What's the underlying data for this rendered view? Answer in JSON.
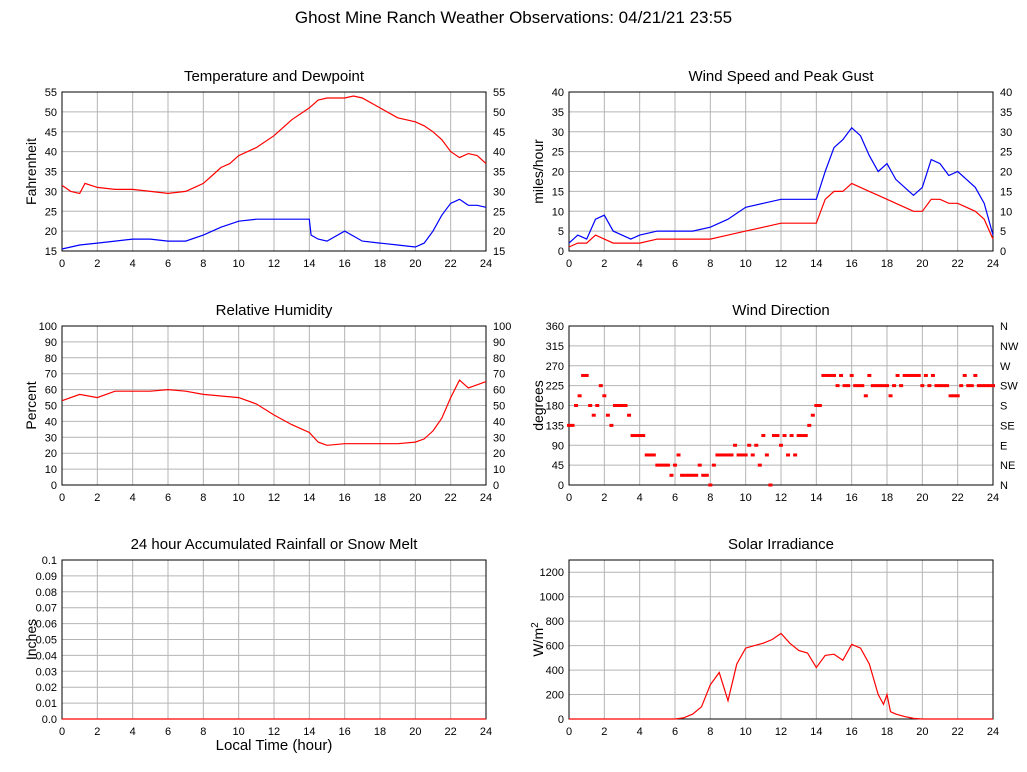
{
  "page_title": "Ghost Mine Ranch Weather Observations: 04/21/21 23:55",
  "x_axis_title": "Local Time (hour)",
  "chart_data": [
    {
      "id": "temp",
      "type": "line",
      "title": "Temperature and Dewpoint",
      "ylabel": "Fahrenheit",
      "xlim": [
        0,
        24
      ],
      "ylim": [
        15,
        55
      ],
      "x_ticks": [
        0,
        2,
        4,
        6,
        8,
        10,
        12,
        14,
        16,
        18,
        20,
        22,
        24
      ],
      "y_ticks": [
        15,
        20,
        25,
        30,
        35,
        40,
        45,
        50,
        55
      ],
      "right_ticks": [
        "15",
        "20",
        "25",
        "30",
        "35",
        "40",
        "45",
        "50",
        "55"
      ],
      "grid": true,
      "series": [
        {
          "color": "#ff0000",
          "x": [
            0,
            0.5,
            1,
            1.3,
            2,
            3,
            4,
            5,
            6,
            7,
            7.5,
            8,
            8.5,
            9,
            9.5,
            10,
            11,
            12,
            13,
            14,
            14.5,
            15,
            16,
            16.5,
            17,
            18,
            19,
            20,
            20.5,
            21,
            21.5,
            22,
            22.5,
            23,
            23.5,
            24
          ],
          "y": [
            31.5,
            30,
            29.5,
            32,
            31,
            30.5,
            30.5,
            30,
            29.5,
            30,
            31,
            32,
            34,
            36,
            37,
            39,
            41,
            44,
            48,
            51,
            53,
            53.5,
            53.5,
            54,
            53.5,
            51,
            48.5,
            47.5,
            46.5,
            45,
            43,
            40,
            38.5,
            39.5,
            39,
            37
          ]
        },
        {
          "color": "#0000ff",
          "x": [
            0,
            0.5,
            1,
            2,
            3,
            4,
            5,
            6,
            7,
            8,
            9,
            10,
            11,
            12,
            13,
            14,
            14.1,
            14.5,
            15,
            16,
            17,
            18,
            19,
            20,
            20.5,
            21,
            21.5,
            22,
            22.5,
            23,
            23.5,
            24
          ],
          "y": [
            15.5,
            16,
            16.5,
            17,
            17.5,
            18,
            18,
            17.5,
            17.5,
            19,
            21,
            22.5,
            23,
            23,
            23,
            23,
            19,
            18,
            17.5,
            20,
            17.5,
            17,
            16.5,
            16,
            17,
            20,
            24,
            27,
            28,
            26.5,
            26.5,
            26
          ]
        }
      ]
    },
    {
      "id": "wind",
      "type": "line",
      "title": "Wind Speed and Peak Gust",
      "ylabel": "miles/hour",
      "xlim": [
        0,
        24
      ],
      "ylim": [
        0,
        40
      ],
      "x_ticks": [
        0,
        2,
        4,
        6,
        8,
        10,
        12,
        14,
        16,
        18,
        20,
        22,
        24
      ],
      "y_ticks": [
        0,
        5,
        10,
        15,
        20,
        25,
        30,
        35,
        40
      ],
      "right_ticks": [
        "0",
        "5",
        "10",
        "15",
        "20",
        "25",
        "30",
        "35",
        "40"
      ],
      "grid": true,
      "series": [
        {
          "color": "#0000ff",
          "x": [
            0,
            0.5,
            1,
            1.5,
            2,
            2.5,
            3,
            3.5,
            4,
            5,
            6,
            7,
            8,
            9,
            10,
            11,
            12,
            13,
            14,
            14.5,
            15,
            15.5,
            16,
            16.5,
            17,
            17.5,
            18,
            18.5,
            19,
            19.5,
            20,
            20.5,
            21,
            21.5,
            22,
            22.5,
            23,
            23.5,
            24
          ],
          "y": [
            2,
            4,
            3,
            8,
            9,
            5,
            4,
            3,
            4,
            5,
            5,
            5,
            6,
            8,
            11,
            12,
            13,
            13,
            13,
            20,
            26,
            28,
            31,
            29,
            24,
            20,
            22,
            18,
            16,
            14,
            16,
            23,
            22,
            19,
            20,
            18,
            16,
            12,
            4
          ]
        },
        {
          "color": "#ff0000",
          "x": [
            0,
            0.5,
            1,
            1.5,
            2,
            2.5,
            3,
            3.5,
            4,
            5,
            6,
            7,
            8,
            9,
            10,
            11,
            12,
            13,
            14,
            14.5,
            15,
            15.5,
            16,
            16.5,
            17,
            17.5,
            18,
            18.5,
            19,
            19.5,
            20,
            20.5,
            21,
            21.5,
            22,
            22.5,
            23,
            23.5,
            24
          ],
          "y": [
            1,
            2,
            2,
            4,
            3,
            2,
            2,
            2,
            2,
            3,
            3,
            3,
            3,
            4,
            5,
            6,
            7,
            7,
            7,
            13,
            15,
            15,
            17,
            16,
            15,
            14,
            13,
            12,
            11,
            10,
            10,
            13,
            13,
            12,
            12,
            11,
            10,
            8,
            3
          ]
        }
      ]
    },
    {
      "id": "rh",
      "type": "line",
      "title": "Relative Humidity",
      "ylabel": "Percent",
      "xlim": [
        0,
        24
      ],
      "ylim": [
        0,
        100
      ],
      "x_ticks": [
        0,
        2,
        4,
        6,
        8,
        10,
        12,
        14,
        16,
        18,
        20,
        22,
        24
      ],
      "y_ticks": [
        0,
        10,
        20,
        30,
        40,
        50,
        60,
        70,
        80,
        90,
        100
      ],
      "right_ticks": [
        "0",
        "10",
        "20",
        "30",
        "40",
        "50",
        "60",
        "70",
        "80",
        "90",
        "100"
      ],
      "grid": true,
      "series": [
        {
          "color": "#ff0000",
          "x": [
            0,
            1,
            2,
            3,
            4,
            5,
            6,
            7,
            8,
            9,
            10,
            11,
            12,
            13,
            14,
            14.5,
            15,
            16,
            17,
            18,
            19,
            20,
            20.5,
            21,
            21.5,
            22,
            22.5,
            23,
            23.5,
            24
          ],
          "y": [
            53,
            57,
            55,
            59,
            59,
            59,
            60,
            59,
            57,
            56,
            55,
            51,
            44,
            38,
            33,
            27,
            25,
            26,
            26,
            26,
            26,
            27,
            29,
            34,
            42,
            55,
            66,
            61,
            63,
            65
          ]
        }
      ]
    },
    {
      "id": "dir",
      "type": "scatter",
      "title": "Wind Direction",
      "ylabel": "degrees",
      "xlim": [
        0,
        24
      ],
      "ylim": [
        0,
        360
      ],
      "x_ticks": [
        0,
        2,
        4,
        6,
        8,
        10,
        12,
        14,
        16,
        18,
        20,
        22,
        24
      ],
      "y_ticks": [
        0,
        45,
        90,
        135,
        180,
        225,
        270,
        315,
        360
      ],
      "right_ticks": [
        "N",
        "NE",
        "E",
        "SE",
        "S",
        "SW",
        "W",
        "NW",
        "N"
      ],
      "grid": true,
      "series": [
        {
          "color": "#ff0000",
          "x": [
            0,
            0.2,
            0.4,
            0.6,
            0.8,
            1,
            1.2,
            1.4,
            1.6,
            1.8,
            2,
            2.2,
            2.4,
            2.6,
            2.8,
            3,
            3.2,
            3.4,
            3.6,
            3.8,
            4,
            4.2,
            4.4,
            4.6,
            4.8,
            5,
            5.2,
            5.4,
            5.6,
            5.8,
            6,
            6.2,
            6.4,
            6.6,
            6.8,
            7,
            7.2,
            7.4,
            7.6,
            7.8,
            8,
            8.2,
            8.4,
            8.6,
            8.8,
            9,
            9.2,
            9.4,
            9.6,
            9.8,
            10,
            10.2,
            10.4,
            10.6,
            10.8,
            11,
            11.2,
            11.4,
            11.6,
            11.8,
            12,
            12.2,
            12.4,
            12.6,
            12.8,
            13,
            13.2,
            13.4,
            13.6,
            13.8,
            14,
            14.2,
            14.4,
            14.6,
            14.8,
            15,
            15.2,
            15.4,
            15.6,
            15.8,
            16,
            16.2,
            16.4,
            16.6,
            16.8,
            17,
            17.2,
            17.4,
            17.6,
            17.8,
            18,
            18.2,
            18.4,
            18.6,
            18.8,
            19,
            19.2,
            19.4,
            19.6,
            19.8,
            20,
            20.2,
            20.4,
            20.6,
            20.8,
            21,
            21.2,
            21.4,
            21.6,
            21.8,
            22,
            22.2,
            22.4,
            22.6,
            22.8,
            23,
            23.2,
            23.4,
            23.6,
            23.8,
            24
          ],
          "y": [
            135,
            135,
            180,
            202,
            248,
            248,
            180,
            158,
            180,
            225,
            202,
            158,
            135,
            180,
            180,
            180,
            180,
            158,
            112,
            112,
            112,
            112,
            68,
            68,
            68,
            45,
            45,
            45,
            45,
            22,
            45,
            68,
            22,
            22,
            22,
            22,
            22,
            45,
            22,
            22,
            0,
            45,
            68,
            68,
            68,
            68,
            68,
            90,
            68,
            68,
            68,
            90,
            68,
            90,
            45,
            112,
            68,
            0,
            112,
            112,
            90,
            112,
            68,
            112,
            68,
            112,
            112,
            112,
            135,
            158,
            180,
            180,
            248,
            248,
            248,
            248,
            225,
            248,
            225,
            225,
            248,
            225,
            225,
            225,
            202,
            248,
            225,
            225,
            225,
            225,
            225,
            202,
            225,
            248,
            225,
            248,
            248,
            248,
            248,
            248,
            225,
            248,
            225,
            248,
            225,
            225,
            225,
            225,
            202,
            202,
            202,
            225,
            248,
            225,
            225,
            248,
            225,
            225,
            225,
            225,
            225
          ]
        }
      ]
    },
    {
      "id": "rain",
      "type": "line",
      "title": "24 hour Accumulated Rainfall or Snow Melt",
      "ylabel": "Inches",
      "xlim": [
        0,
        24
      ],
      "ylim": [
        0,
        0.1
      ],
      "x_ticks": [
        0,
        2,
        4,
        6,
        8,
        10,
        12,
        14,
        16,
        18,
        20,
        22,
        24
      ],
      "y_ticks": [
        0,
        0.01,
        0.02,
        0.03,
        0.04,
        0.05,
        0.06,
        0.07,
        0.08,
        0.09,
        0.1
      ],
      "y_tick_labels": [
        "0.0",
        "0.01",
        "0.02",
        "0.03",
        "0.04",
        "0.05",
        "0.06",
        "0.07",
        "0.08",
        "0.09",
        "0.1"
      ],
      "right_ticks": [],
      "grid": true,
      "series": [
        {
          "color": "#ff0000",
          "x": [
            0,
            24
          ],
          "y": [
            0,
            0
          ]
        }
      ]
    },
    {
      "id": "solar",
      "type": "line",
      "title": "Solar Irradiance",
      "ylabel": "W/m",
      "ylabel_sup": "2",
      "xlim": [
        0,
        24
      ],
      "ylim": [
        0,
        1300
      ],
      "x_ticks": [
        0,
        2,
        4,
        6,
        8,
        10,
        12,
        14,
        16,
        18,
        20,
        22,
        24
      ],
      "y_ticks": [
        0,
        200,
        400,
        600,
        800,
        1000,
        1200
      ],
      "right_ticks": [],
      "grid": true,
      "series": [
        {
          "color": "#ff0000",
          "x": [
            0,
            6,
            6.5,
            7,
            7.5,
            8,
            8.5,
            9,
            9.5,
            10,
            10.5,
            11,
            11.5,
            12,
            12.5,
            13,
            13.5,
            14,
            14.5,
            15,
            15.5,
            16,
            16.5,
            17,
            17.5,
            17.8,
            18,
            18.2,
            18.5,
            19,
            19.5,
            20,
            24
          ],
          "y": [
            0,
            0,
            10,
            40,
            100,
            280,
            380,
            150,
            450,
            580,
            600,
            620,
            650,
            700,
            620,
            560,
            540,
            420,
            520,
            530,
            480,
            610,
            580,
            450,
            200,
            120,
            200,
            60,
            40,
            20,
            5,
            0,
            0
          ]
        }
      ]
    }
  ]
}
